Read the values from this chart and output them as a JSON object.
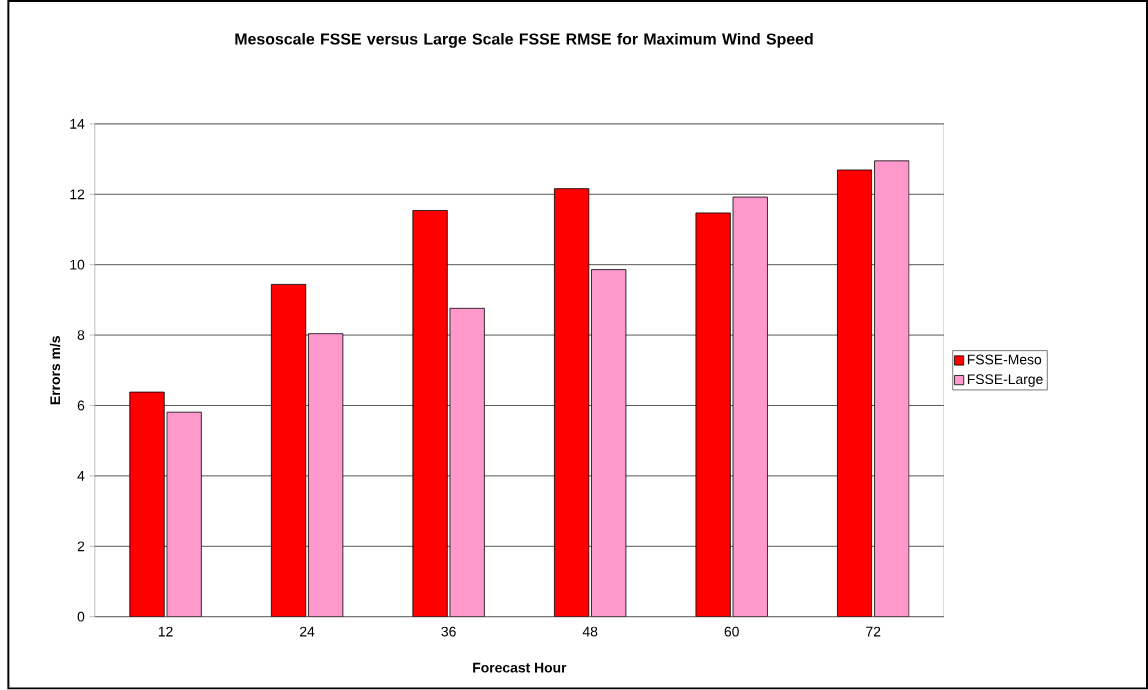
{
  "chart_data": {
    "type": "bar",
    "title": "Mesoscale FSSE versus Large Scale FSSE RMSE for Maximum Wind Speed",
    "xlabel": "Forecast Hour",
    "ylabel": "Errors m/s",
    "categories": [
      "12",
      "24",
      "36",
      "48",
      "60",
      "72"
    ],
    "series": [
      {
        "name": "FSSE-Meso",
        "color": "#ff0000",
        "values": [
          6.38,
          9.44,
          11.54,
          12.16,
          11.47,
          12.69
        ]
      },
      {
        "name": "FSSE-Large",
        "color": "#ff99cc",
        "values": [
          5.81,
          8.04,
          8.76,
          9.86,
          11.92,
          12.95
        ]
      }
    ],
    "ylim": [
      0,
      14
    ],
    "yticks": [
      0,
      2,
      4,
      6,
      8,
      10,
      12,
      14
    ],
    "grid": "y",
    "legend": "right"
  }
}
